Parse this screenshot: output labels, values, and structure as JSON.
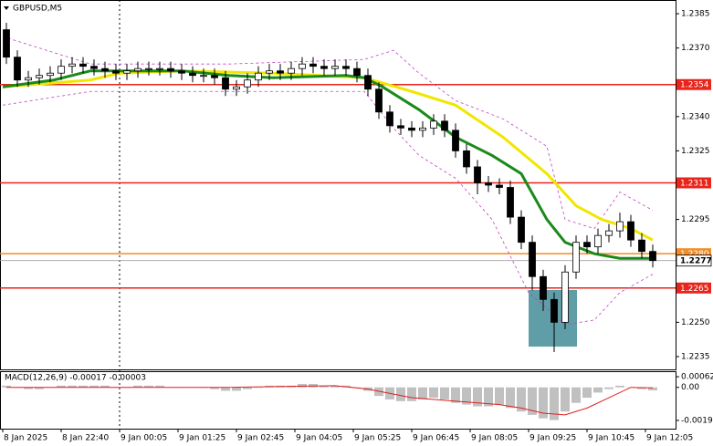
{
  "chart_data": [
    {
      "type": "candlestick",
      "title": "GBPUSD,M5",
      "up_color": "#ffffff",
      "down_color": "#000000",
      "x": [
        1,
        4,
        7,
        10,
        13,
        16,
        19,
        22,
        25,
        28,
        31,
        34,
        37,
        40,
        43,
        46,
        49,
        52,
        55,
        58,
        61,
        64,
        67,
        70,
        73,
        76,
        79,
        82,
        85,
        88,
        91,
        94,
        97,
        100,
        103,
        106,
        109,
        112,
        115,
        118,
        121,
        124,
        127,
        130,
        133,
        136,
        139,
        142,
        145,
        148,
        151,
        154,
        157,
        160,
        163,
        166,
        169,
        172,
        175,
        178
      ],
      "open": [
        1.2378,
        1.2366,
        1.2356,
        1.2357,
        1.2358,
        1.2359,
        1.2362,
        1.2363,
        1.2362,
        1.2361,
        1.236,
        1.2359,
        1.236,
        1.2361,
        1.2361,
        1.2361,
        1.236,
        1.2359,
        1.2358,
        1.2358,
        1.2357,
        1.2352,
        1.2353,
        1.2356,
        1.2359,
        1.236,
        1.2359,
        1.2361,
        1.2363,
        1.2362,
        1.2361,
        1.2362,
        1.2361,
        1.2358,
        1.2352,
        1.2342,
        1.2336,
        1.2335,
        1.2334,
        1.2335,
        1.2338,
        1.2334,
        1.2325,
        1.2318,
        1.2311,
        1.231,
        1.2309,
        1.2296,
        1.2285,
        1.227,
        1.226,
        1.225,
        1.2272,
        1.2285,
        1.2283,
        1.2288,
        1.229,
        1.2294,
        1.2286,
        1.2281
      ],
      "high": [
        1.2381,
        1.2369,
        1.236,
        1.2361,
        1.2362,
        1.2365,
        1.2366,
        1.2366,
        1.2365,
        1.2364,
        1.2363,
        1.2363,
        1.2364,
        1.2364,
        1.2364,
        1.2364,
        1.2363,
        1.2362,
        1.2361,
        1.2361,
        1.236,
        1.2356,
        1.2359,
        1.2362,
        1.2363,
        1.2363,
        1.2364,
        1.2366,
        1.2366,
        1.2365,
        1.2365,
        1.2365,
        1.2364,
        1.2361,
        1.2355,
        1.2345,
        1.2339,
        1.2338,
        1.2338,
        1.2341,
        1.2341,
        1.2337,
        1.2328,
        1.2321,
        1.2314,
        1.2313,
        1.2312,
        1.2299,
        1.2288,
        1.2273,
        1.2263,
        1.2275,
        1.2288,
        1.2288,
        1.2291,
        1.2293,
        1.2298,
        1.2297,
        1.2289,
        1.2284
      ],
      "low": [
        1.2363,
        1.2353,
        1.2353,
        1.2354,
        1.2355,
        1.2356,
        1.2359,
        1.2359,
        1.2358,
        1.2357,
        1.2356,
        1.2356,
        1.2357,
        1.2358,
        1.2358,
        1.2357,
        1.2356,
        1.2355,
        1.2355,
        1.2354,
        1.2349,
        1.2349,
        1.235,
        1.2353,
        1.2356,
        1.2356,
        1.2356,
        1.2358,
        1.2359,
        1.2358,
        1.2358,
        1.2358,
        1.2355,
        1.2349,
        1.2339,
        1.2333,
        1.2332,
        1.2331,
        1.2331,
        1.2332,
        1.2331,
        1.2322,
        1.2315,
        1.2306,
        1.2307,
        1.2306,
        1.2293,
        1.2282,
        1.2264,
        1.2255,
        1.2237,
        1.2247,
        1.2269,
        1.228,
        1.228,
        1.2285,
        1.2287,
        1.2283,
        1.2278,
        1.2274
      ],
      "close": [
        1.2366,
        1.2356,
        1.2357,
        1.2358,
        1.2359,
        1.2362,
        1.2363,
        1.2362,
        1.2361,
        1.236,
        1.2359,
        1.236,
        1.2361,
        1.2361,
        1.2361,
        1.236,
        1.2359,
        1.2358,
        1.2358,
        1.2357,
        1.2352,
        1.2353,
        1.2356,
        1.2359,
        1.236,
        1.2359,
        1.2361,
        1.2363,
        1.2362,
        1.2361,
        1.2362,
        1.2361,
        1.2358,
        1.2352,
        1.2342,
        1.2336,
        1.2335,
        1.2334,
        1.2335,
        1.2338,
        1.2334,
        1.2325,
        1.2318,
        1.2311,
        1.231,
        1.2309,
        1.2296,
        1.2285,
        1.227,
        1.226,
        1.225,
        1.2272,
        1.2285,
        1.2283,
        1.2288,
        1.229,
        1.2294,
        1.2286,
        1.2281,
        1.2277
      ],
      "series": [
        {
          "color": "#c040c0",
          "dashed": true,
          "line_width": 0.8,
          "x": [
            0,
            24,
            62,
            99,
            107,
            114,
            124,
            137,
            149,
            154,
            162,
            169,
            178
          ],
          "values": [
            1.2375,
            1.2363,
            1.2363,
            1.2365,
            1.2369,
            1.2359,
            1.2347,
            1.2339,
            1.2327,
            1.2295,
            1.2291,
            1.2307,
            1.2299
          ]
        },
        {
          "color": "#c040c0",
          "dashed": true,
          "line_width": 0.8,
          "x": [
            0,
            24,
            62,
            99,
            107,
            114,
            124,
            134,
            144,
            154,
            162,
            169,
            178
          ],
          "values": [
            1.2345,
            1.2351,
            1.2351,
            1.2351,
            1.2335,
            1.2323,
            1.2313,
            1.2295,
            1.2263,
            1.2249,
            1.2251,
            1.2263,
            1.2271
          ]
        },
        {
          "color": "#f2e600",
          "line_width": 3,
          "x": [
            0,
            24,
            32,
            49,
            74,
            99,
            112,
            124,
            137,
            149,
            157,
            164,
            172,
            178
          ],
          "values": [
            1.2353,
            1.2356,
            1.2359,
            1.236,
            1.2359,
            1.2357,
            1.2351,
            1.2345,
            1.2331,
            1.2315,
            1.2301,
            1.2295,
            1.2291,
            1.2286
          ]
        },
        {
          "color": "#1a8a1a",
          "line_width": 3,
          "x": [
            0,
            14,
            24,
            49,
            62,
            74,
            94,
            99,
            104,
            114,
            124,
            134,
            142,
            149,
            154,
            162,
            169,
            178
          ],
          "values": [
            1.2353,
            1.2356,
            1.236,
            1.236,
            1.2358,
            1.2357,
            1.2358,
            1.2357,
            1.2353,
            1.2343,
            1.2331,
            1.2323,
            1.2315,
            1.2295,
            1.2285,
            1.228,
            1.2278,
            1.2278
          ]
        }
      ],
      "levels": [
        {
          "value": 1.2354,
          "color": "#e8241b"
        },
        {
          "value": 1.2311,
          "color": "#e8241b"
        },
        {
          "value": {
            "value": 1.228,
            "label": "1.2280"
          },
          "color": "#f28c28"
        },
        {
          "value": 1.2265,
          "color": "#e8241b"
        }
      ],
      "current": 1.2277,
      "xlim": [
        -0.75,
        184.25
      ],
      "ylim": [
        1.22294,
        1.2391
      ],
      "yticks": [
        1.2385,
        {
          "value": 1.237,
          "label": "1.2370"
        },
        {
          "value": 1.234,
          "label": "1.2340"
        },
        1.2325,
        1.2295,
        {
          "value": 1.225,
          "label": "1.2250"
        },
        1.2235
      ],
      "xticks": [
        {
          "value": 0,
          "label": "8 Jan 2025"
        },
        {
          "value": 16,
          "label": "8 Jan 22:40"
        },
        {
          "value": 32,
          "label": "9 Jan 00:05"
        },
        {
          "value": 48,
          "label": "9 Jan 01:25"
        },
        {
          "value": 64,
          "label": "9 Jan 02:45"
        },
        {
          "value": 80,
          "label": "9 Jan 04:05"
        },
        {
          "value": 96,
          "label": "9 Jan 05:25"
        },
        {
          "value": 112,
          "label": "9 Jan 06:45"
        },
        {
          "value": 128,
          "label": "9 Jan 08:05"
        },
        {
          "value": 144,
          "label": "9 Jan 09:25"
        },
        {
          "value": 160,
          "label": "9 Jan 10:45"
        },
        {
          "value": 176,
          "label": "9 Jan 12:05"
        }
      ]
    },
    {
      "type": "macd",
      "title": "MACD(12,26,9) -0.00017 -0.00003",
      "color": "#c0c0c0",
      "x": [
        1,
        4,
        7,
        10,
        13,
        16,
        19,
        22,
        25,
        28,
        31,
        34,
        37,
        40,
        43,
        46,
        49,
        52,
        55,
        58,
        61,
        64,
        67,
        70,
        73,
        76,
        79,
        82,
        85,
        88,
        91,
        94,
        97,
        100,
        103,
        106,
        109,
        112,
        115,
        118,
        121,
        124,
        127,
        130,
        133,
        136,
        139,
        142,
        145,
        148,
        151,
        154,
        157,
        160,
        163,
        166,
        169,
        172,
        175,
        178
      ],
      "values": [
        0.0001,
        0.0,
        -0.0001,
        -0.0001,
        0.0,
        0.0001,
        0.0001,
        0.0001,
        0.0001,
        0.0001,
        0.0,
        0.0,
        0.0001,
        0.0001,
        0.0001,
        0.0,
        0.0,
        0.0,
        0.0,
        -0.0001,
        -0.0002,
        -0.0002,
        -0.0001,
        0.0,
        0.0001,
        0.0001,
        0.0001,
        0.0002,
        0.0002,
        0.0001,
        0.0001,
        0.0001,
        0.0,
        -0.0002,
        -0.0005,
        -0.0007,
        -0.0008,
        -0.0008,
        -0.0007,
        -0.0006,
        -0.0007,
        -0.0009,
        -0.001,
        -0.0011,
        -0.0011,
        -0.001,
        -0.0012,
        -0.0014,
        -0.0016,
        -0.0018,
        -0.0019,
        -0.0014,
        -0.0009,
        -0.0006,
        -0.0003,
        -0.0001,
        0.0001,
        0.0,
        -0.0001,
        -0.00017
      ],
      "series": [
        {
          "color": "#e02020",
          "line_width": 1,
          "x": [
            1,
            31,
            61,
            91,
            100,
            112,
            124,
            136,
            142,
            148,
            154,
            160,
            166,
            172,
            178
          ],
          "values": [
            0.0,
            0.0,
            0.0,
            0.0001,
            -0.0001,
            -0.0006,
            -0.0008,
            -0.001,
            -0.0012,
            -0.0015,
            -0.0016,
            -0.0012,
            -0.0006,
            0.0,
            -3e-05
          ]
        }
      ],
      "xlim": [
        -0.75,
        184.25
      ],
      "ylim": [
        -0.0024,
        0.00094
      ],
      "yticks": [
        0.00062,
        {
          "value": 0,
          "label": "0.00"
        },
        -0.00192
      ]
    }
  ]
}
